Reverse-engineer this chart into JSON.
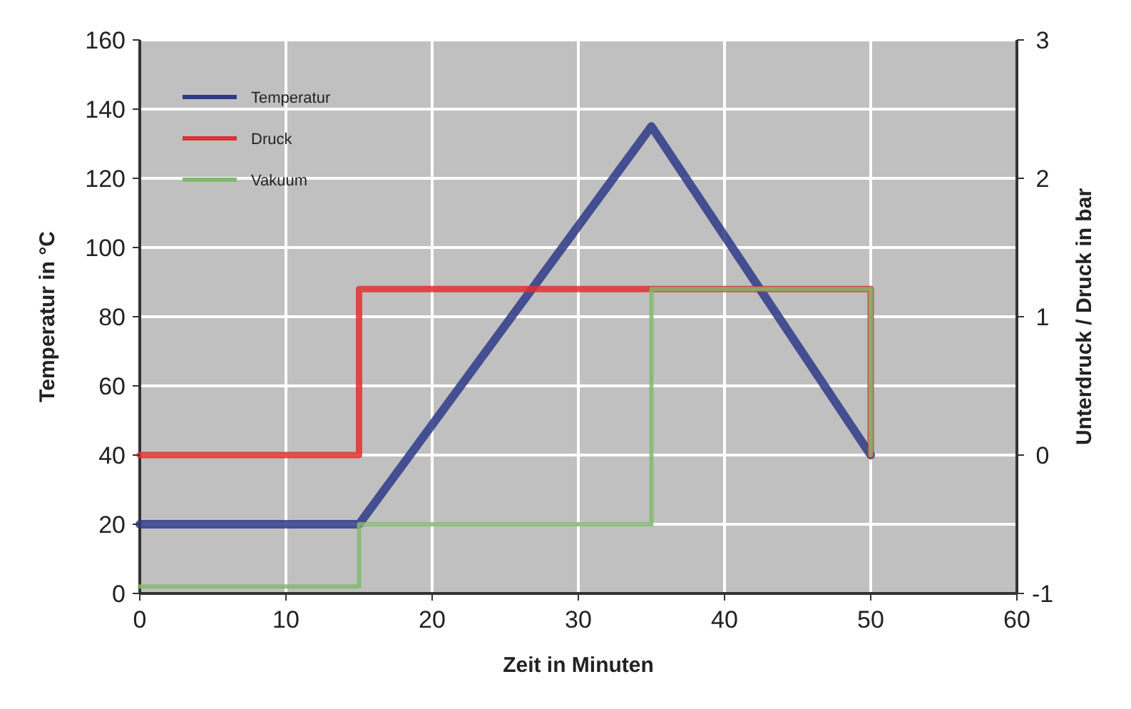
{
  "chart_data": {
    "type": "line",
    "xlabel": "Zeit in Minuten",
    "ylabel": "Temperatur in °C",
    "y2label": "Unterdruck / Druck in bar",
    "xlim": [
      0,
      60
    ],
    "xticks": [
      0,
      10,
      20,
      30,
      40,
      50,
      60
    ],
    "ylim": [
      0,
      160
    ],
    "yticks": [
      0,
      20,
      40,
      60,
      80,
      100,
      120,
      140,
      160
    ],
    "y2lim": [
      -1,
      3
    ],
    "y2ticks": [
      -1,
      0,
      1,
      2,
      3
    ],
    "grid": true,
    "legend": "top left",
    "marker": "none",
    "line_style": "solid",
    "series": [
      {
        "name": "Temperatur",
        "color": "#2e3a87",
        "x": [
          0,
          15,
          35,
          50
        ],
        "values": [
          20,
          20,
          135,
          40
        ]
      },
      {
        "name": "Druck",
        "color": "#e03030",
        "axis": "y2",
        "x": [
          0,
          15,
          15,
          35,
          50,
          50
        ],
        "values": [
          0,
          0,
          1.2,
          1.2,
          1.2,
          0
        ]
      },
      {
        "name": "Vakuum",
        "color": "#82b86e",
        "axis": "y2",
        "x": [
          0,
          15,
          15,
          35,
          35,
          50,
          50
        ],
        "values": [
          -0.95,
          -0.95,
          -0.5,
          -0.5,
          1.2,
          1.2,
          0
        ]
      }
    ]
  }
}
